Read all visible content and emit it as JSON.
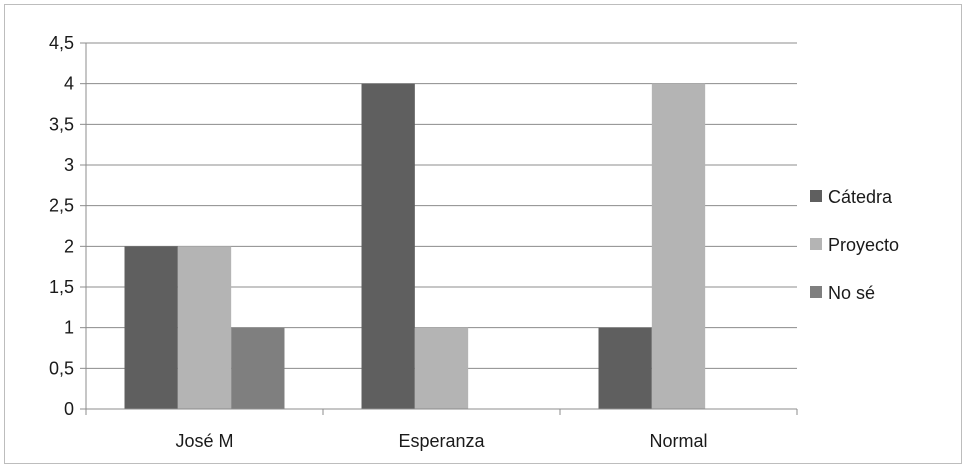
{
  "chart_data": {
    "type": "bar",
    "categories": [
      "José M",
      "Esperanza",
      "Normal"
    ],
    "series": [
      {
        "name": "Cátedra",
        "values": [
          2,
          4,
          1
        ],
        "color": "#5f5f5f"
      },
      {
        "name": "Proyecto",
        "values": [
          2,
          1,
          4
        ],
        "color": "#b4b4b4"
      },
      {
        "name": "No sé",
        "values": [
          1,
          0,
          0
        ],
        "color": "#7f7f7f"
      }
    ],
    "yticks": [
      "0",
      "0,5",
      "1",
      "1,5",
      "2",
      "2,5",
      "3",
      "3,5",
      "4",
      "4,5"
    ],
    "ylim": [
      0,
      4.5
    ],
    "grid": true,
    "legend_position": "right",
    "title": "",
    "xlabel": "",
    "ylabel": ""
  }
}
